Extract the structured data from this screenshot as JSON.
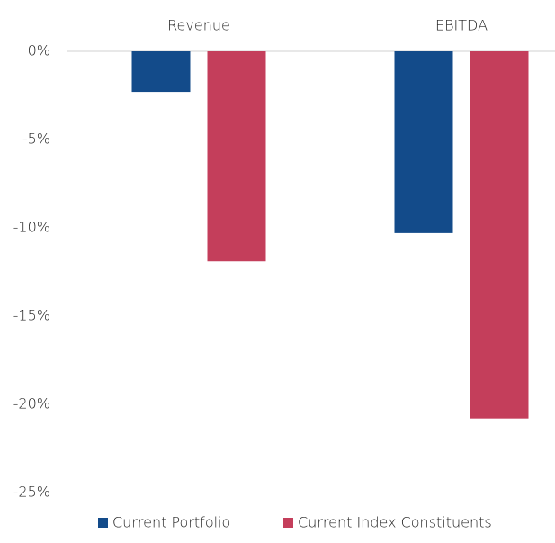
{
  "chart_data": {
    "type": "bar",
    "categories": [
      "Revenue",
      "EBITDA"
    ],
    "series": [
      {
        "name": "Current Portfolio",
        "color": "#134b8a",
        "values": [
          -2.3,
          -10.3
        ]
      },
      {
        "name": "Current Index Constituents",
        "color": "#c43e5b",
        "values": [
          -11.9,
          -20.8
        ]
      }
    ],
    "ylim": [
      -25,
      0
    ],
    "yticks": [
      {
        "value": 0,
        "label": "0%"
      },
      {
        "value": -5,
        "label": "-5%"
      },
      {
        "value": -10,
        "label": "-10%"
      },
      {
        "value": -15,
        "label": "-15%"
      },
      {
        "value": -20,
        "label": "-20%"
      },
      {
        "value": -25,
        "label": "-25%"
      }
    ],
    "grid": false,
    "legend": "bottom"
  }
}
